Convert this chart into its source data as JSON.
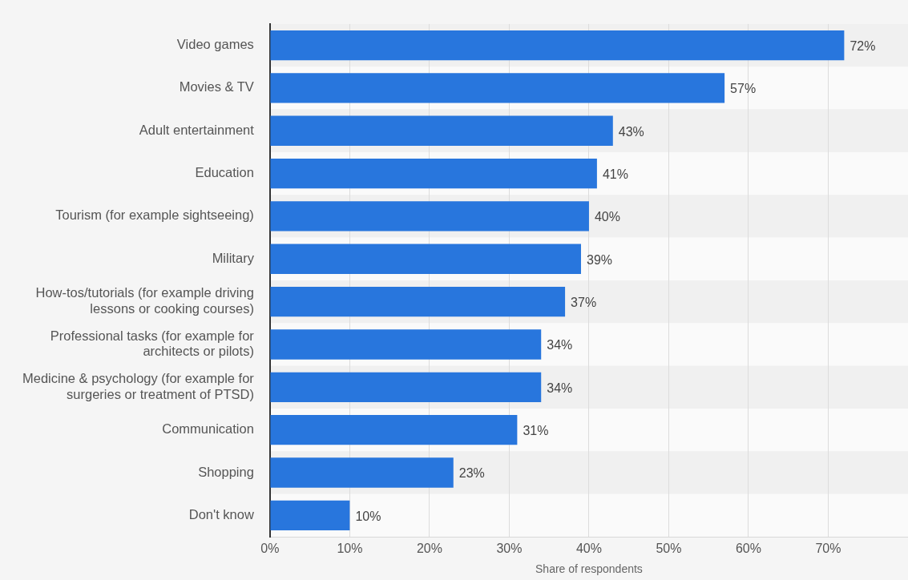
{
  "chart_data": {
    "type": "bar",
    "orientation": "horizontal",
    "xlabel": "Share of respondents",
    "categories": [
      "Video games",
      "Movies & TV",
      "Adult entertainment",
      "Education",
      "Tourism (for example sightseeing)",
      "Military",
      "How-tos/tutorials (for example driving lessons or cooking courses)",
      "Professional tasks (for example for architects or pilots)",
      "Medicine & psychology (for example for surgeries or treatment of PTSD)",
      "Communication",
      "Shopping",
      "Don't know"
    ],
    "values": [
      72,
      57,
      43,
      41,
      40,
      39,
      37,
      34,
      34,
      31,
      23,
      10
    ],
    "value_labels": [
      "72%",
      "57%",
      "43%",
      "41%",
      "40%",
      "39%",
      "37%",
      "34%",
      "34%",
      "31%",
      "23%",
      "10%"
    ],
    "color": "#2876dd",
    "xlim": [
      0,
      80
    ],
    "xticks": [
      {
        "value": 0,
        "label": "0%"
      },
      {
        "value": 10,
        "label": "10%"
      },
      {
        "value": 20,
        "label": "20%"
      },
      {
        "value": 30,
        "label": "30%"
      },
      {
        "value": 40,
        "label": "40%"
      },
      {
        "value": 50,
        "label": "50%"
      },
      {
        "value": 60,
        "label": "60%"
      },
      {
        "value": 70,
        "label": "70%"
      }
    ],
    "grid": "x",
    "legend": false
  }
}
